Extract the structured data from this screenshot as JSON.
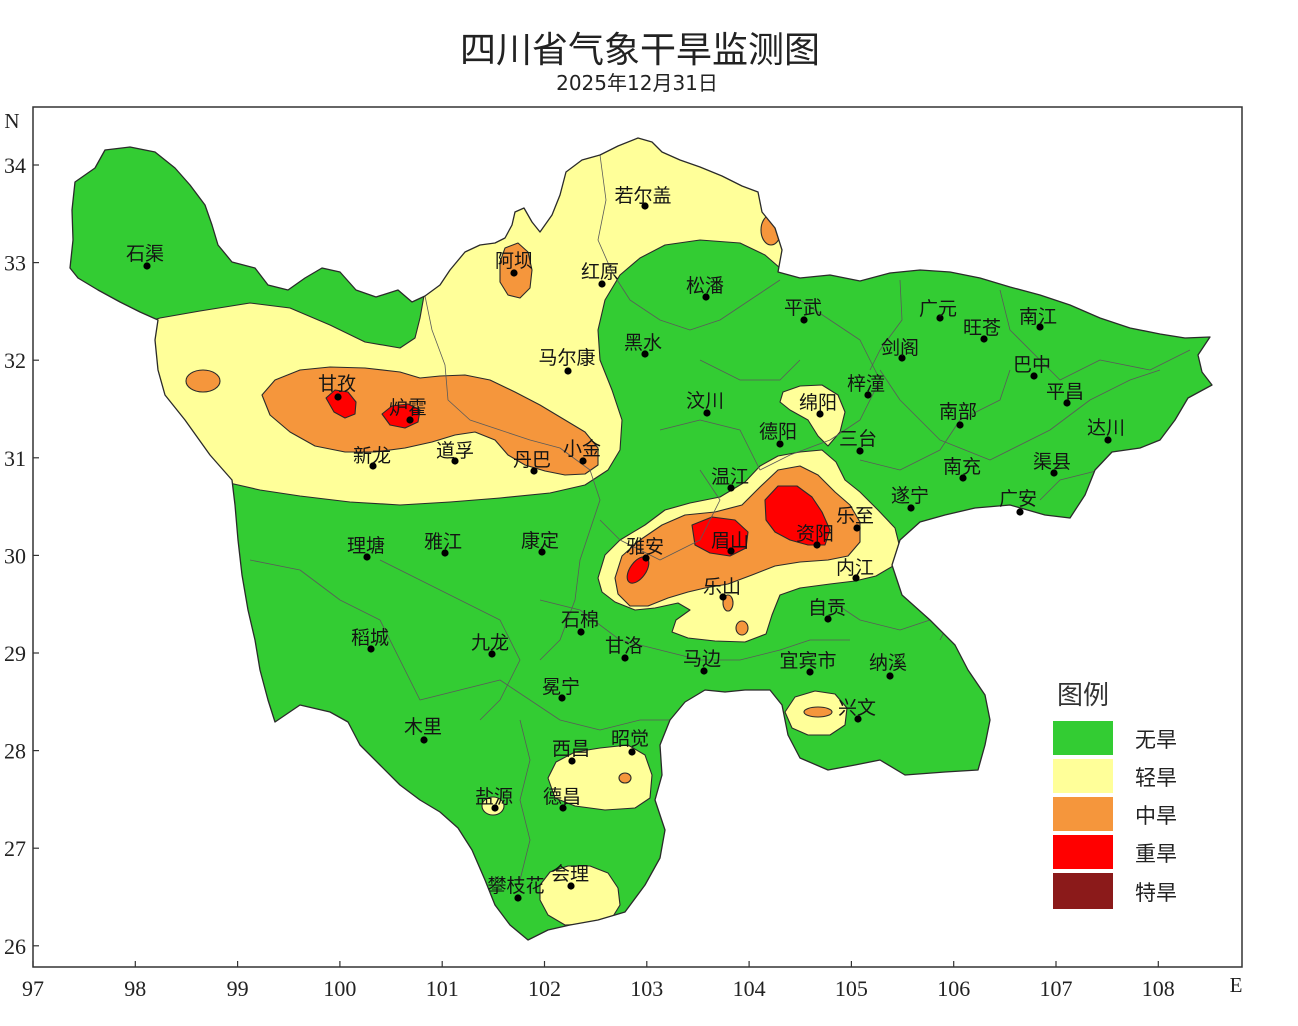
{
  "title": "四川省气象干旱监测图",
  "subtitle": "2025年12月31日",
  "axes": {
    "x_ticks": [
      "97",
      "98",
      "99",
      "100",
      "101",
      "102",
      "103",
      "104",
      "105",
      "106",
      "107",
      "108"
    ],
    "y_ticks": [
      "34",
      "33",
      "32",
      "31",
      "30",
      "29",
      "28",
      "27",
      "26"
    ],
    "x_label": "E",
    "y_label": "N"
  },
  "legend": {
    "title": "图例",
    "items": [
      {
        "label": "无旱",
        "color": "#33CC33"
      },
      {
        "label": "轻旱",
        "color": "#FFFF99"
      },
      {
        "label": "中旱",
        "color": "#F5963C"
      },
      {
        "label": "重旱",
        "color": "#FF0000"
      },
      {
        "label": "特旱",
        "color": "#8B1A1A"
      }
    ]
  },
  "cities": [
    "石渠",
    "若尔盖",
    "阿坝",
    "红原",
    "松潘",
    "平武",
    "广元",
    "旺苍",
    "南江",
    "黑水",
    "马尔康",
    "剑阁",
    "巴中",
    "平昌",
    "甘孜",
    "炉霍",
    "梓潼",
    "绵阳",
    "汶川",
    "南部",
    "达川",
    "德阳",
    "三台",
    "新龙",
    "道孚",
    "丹巴",
    "小金",
    "南充",
    "渠县",
    "温江",
    "遂宁",
    "广安",
    "乐至",
    "资阳",
    "眉山",
    "雅安",
    "理塘",
    "雅江",
    "康定",
    "内江",
    "乐山",
    "自贡",
    "石棉",
    "甘洛",
    "稻城",
    "九龙",
    "马边",
    "宜宾市",
    "纳溪",
    "冕宁",
    "兴文",
    "木里",
    "西昌",
    "昭觉",
    "盐源",
    "德昌",
    "会理",
    "攀枝花"
  ]
}
